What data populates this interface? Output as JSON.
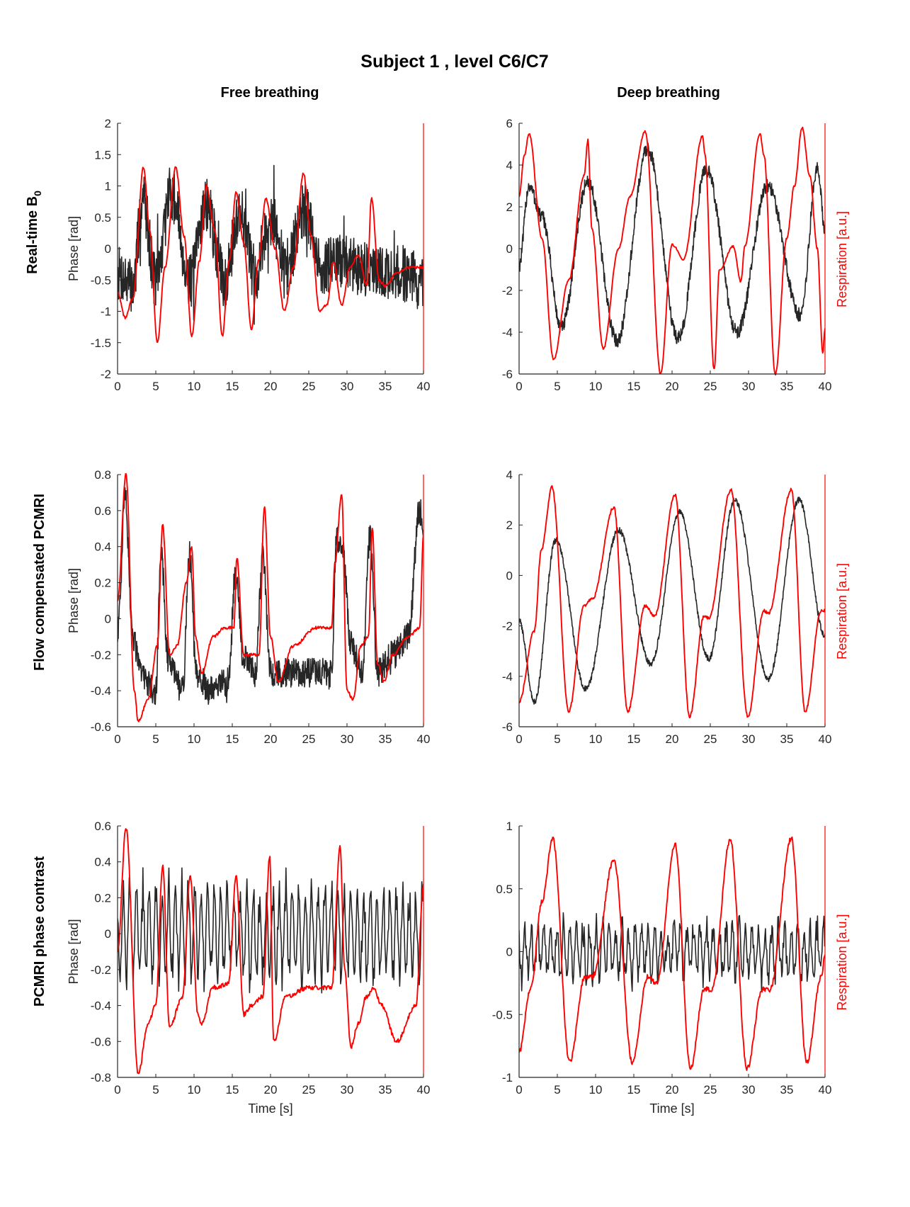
{
  "figure": {
    "title": "Subject 1 , level C6/C7",
    "columns": [
      "Free breathing",
      "Deep breathing"
    ],
    "rows": [
      {
        "label": "Real-time B",
        "subscript": "0"
      },
      {
        "label": "Flow compensated PCMRI",
        "subscript": ""
      },
      {
        "label": "PCMRI phase contrast",
        "subscript": ""
      }
    ],
    "colors": {
      "phase": "#262626",
      "respiration": "#ff0000",
      "axis": "#262626"
    }
  },
  "chart_data": [
    {
      "type": "line",
      "id": "b0_free",
      "row": 0,
      "col": 0,
      "xlim": [
        0,
        40
      ],
      "ylim": [
        -2,
        2
      ],
      "xticks": [
        0,
        5,
        10,
        15,
        20,
        25,
        30,
        35,
        40
      ],
      "yticks": [
        -2,
        -1.5,
        -1,
        -0.5,
        0,
        0.5,
        1,
        1.5,
        2
      ],
      "xlabel": "",
      "ylabel": "Phase [rad]",
      "y2label": "",
      "series": [
        {
          "name": "Phase",
          "color": "#262626",
          "noise": 0.45,
          "spike": 0.6,
          "x": [
            0,
            2,
            3.3,
            5,
            7,
            9.5,
            11.5,
            14,
            16,
            18,
            20,
            22,
            24.5,
            26.5,
            29,
            32,
            35,
            38,
            40
          ],
          "y": [
            -0.4,
            -0.6,
            0.8,
            -0.5,
            0.9,
            -0.5,
            0.7,
            -0.5,
            0.6,
            -0.4,
            0.5,
            -0.3,
            0.6,
            -0.3,
            -0.2,
            -0.3,
            -0.4,
            -0.4,
            -0.6
          ]
        },
        {
          "name": "Respiration",
          "color": "#ff0000",
          "noise": 0.02,
          "x": [
            0,
            1,
            2,
            3.4,
            4.2,
            5.2,
            6.2,
            7.6,
            8.7,
            9.7,
            10.7,
            11.6,
            12.7,
            13.7,
            14.6,
            15.5,
            16.5,
            17.5,
            18.4,
            19.4,
            20.6,
            21.8,
            23,
            24.3,
            25.3,
            26.4,
            27.4,
            28.2,
            29.3,
            30.4,
            31.5,
            32.6,
            33.2,
            34.2,
            35,
            36.5,
            38,
            40
          ],
          "y": [
            -0.7,
            -1.1,
            -0.8,
            1.3,
            0.3,
            -1.5,
            -0.3,
            1.3,
            0.2,
            -1.4,
            -0.2,
            1.0,
            0.3,
            -1.4,
            -0.2,
            0.9,
            0.1,
            -1.3,
            -0.2,
            0.8,
            0.0,
            -1.0,
            -0.3,
            1.2,
            0.2,
            -1.0,
            -0.9,
            -0.2,
            -0.9,
            -0.3,
            -0.1,
            -0.6,
            0.8,
            -0.5,
            -0.6,
            -0.4,
            -0.3,
            -0.3
          ]
        }
      ]
    },
    {
      "type": "line",
      "id": "b0_deep",
      "row": 0,
      "col": 1,
      "xlim": [
        0,
        40
      ],
      "ylim": [
        -6,
        6
      ],
      "xticks": [
        0,
        5,
        10,
        15,
        20,
        25,
        30,
        35,
        40
      ],
      "yticks": [
        -6,
        -4,
        -2,
        0,
        2,
        4,
        6
      ],
      "xlabel": "",
      "ylabel": "",
      "y2label": "Respiration [a.u.]",
      "series": [
        {
          "name": "Phase",
          "color": "#262626",
          "noise": 0.35,
          "spike": 0,
          "x": [
            0,
            1.3,
            3,
            5.5,
            9,
            12.8,
            16.8,
            20.8,
            24.5,
            28.5,
            32.5,
            36.8,
            39,
            40
          ],
          "y": [
            -0.8,
            3.0,
            1.5,
            -3.8,
            3.2,
            -4.4,
            4.8,
            -4.3,
            3.8,
            -4.0,
            3.0,
            -3.2,
            3.8,
            1.0
          ]
        },
        {
          "name": "Respiration",
          "color": "#ff0000",
          "noise": 0.05,
          "x": [
            0,
            0.7,
            1.3,
            3,
            4.5,
            6.5,
            8.5,
            9,
            9.5,
            11,
            13,
            14.5,
            16.5,
            18.5,
            20,
            21.5,
            24,
            24.3,
            25.5,
            26.2,
            28,
            29,
            29.5,
            31.5,
            32,
            33.5,
            35,
            36,
            37,
            38,
            39,
            39.7,
            40
          ],
          "y": [
            2.5,
            4.5,
            5.5,
            0.5,
            -5.3,
            -1.5,
            3.5,
            5.2,
            1.0,
            -4.8,
            0.0,
            2.5,
            5.6,
            -6.0,
            0.2,
            -0.5,
            5.4,
            4.5,
            -5.8,
            -1.0,
            0.1,
            -1.6,
            0.1,
            5.5,
            4.5,
            -6.0,
            0.5,
            3.0,
            5.8,
            3.5,
            0.0,
            -5.0,
            -3.8
          ]
        }
      ]
    },
    {
      "type": "line",
      "id": "fc_free",
      "row": 1,
      "col": 0,
      "xlim": [
        0,
        40
      ],
      "ylim": [
        -0.6,
        0.8
      ],
      "xticks": [
        0,
        5,
        10,
        15,
        20,
        25,
        30,
        35,
        40
      ],
      "yticks": [
        -0.6,
        -0.4,
        -0.2,
        0,
        0.2,
        0.4,
        0.6,
        0.8
      ],
      "xlabel": "",
      "ylabel": "Phase [rad]",
      "y2label": "",
      "series": [
        {
          "name": "Phase",
          "color": "#262626",
          "noise": 0.08,
          "spike": 0.05,
          "x": [
            0,
            1,
            2,
            3,
            5,
            5.7,
            6.5,
            8.5,
            9.4,
            10.3,
            12,
            14.5,
            15.4,
            16.4,
            18,
            19,
            20,
            22,
            25,
            28,
            28.6,
            29.5,
            30.5,
            32,
            33,
            34,
            36,
            38,
            39.5,
            40
          ],
          "y": [
            -0.1,
            0.65,
            -0.1,
            -0.3,
            -0.4,
            0.4,
            -0.2,
            -0.4,
            0.35,
            -0.3,
            -0.4,
            -0.35,
            0.25,
            -0.2,
            -0.3,
            0.35,
            -0.3,
            -0.3,
            -0.3,
            -0.3,
            0.45,
            0.35,
            -0.15,
            -0.3,
            0.45,
            -0.3,
            -0.2,
            -0.1,
            0.6,
            0.5
          ]
        },
        {
          "name": "Respiration",
          "color": "#ff0000",
          "noise": 0.008,
          "x": [
            0,
            1.1,
            2.2,
            2.7,
            4,
            5.2,
            5.9,
            6.8,
            7.8,
            9,
            9.7,
            10.2,
            11,
            12.5,
            14,
            15.2,
            15.6,
            16.5,
            18.5,
            19.2,
            20,
            21,
            23,
            26,
            28,
            28.4,
            29.3,
            30,
            30.8,
            31.8,
            32.8,
            33.3,
            34,
            34.8,
            36,
            38,
            39.5,
            40
          ],
          "y": [
            0.1,
            0.8,
            -0.4,
            -0.57,
            -0.45,
            -0.15,
            0.52,
            -0.2,
            -0.15,
            0.2,
            0.4,
            -0.1,
            -0.3,
            -0.1,
            -0.05,
            -0.05,
            0.34,
            -0.2,
            -0.2,
            0.62,
            -0.1,
            -0.35,
            -0.15,
            -0.05,
            -0.05,
            0.3,
            0.69,
            -0.4,
            -0.45,
            -0.15,
            -0.1,
            0.5,
            -0.25,
            -0.35,
            -0.2,
            -0.1,
            -0.05,
            0.47
          ]
        }
      ]
    },
    {
      "type": "line",
      "id": "fc_deep",
      "row": 1,
      "col": 1,
      "xlim": [
        0,
        40
      ],
      "ylim": [
        -6,
        4
      ],
      "xticks": [
        0,
        5,
        10,
        15,
        20,
        25,
        30,
        35,
        40
      ],
      "yticks": [
        -6,
        -4,
        -2,
        0,
        2,
        4
      ],
      "xlabel": "",
      "ylabel": "",
      "y2label": "Respiration [a.u.]",
      "series": [
        {
          "name": "Phase",
          "color": "#262626",
          "noise": 0.12,
          "spike": 0,
          "x": [
            0,
            2,
            4.8,
            8.7,
            13,
            17.2,
            21,
            24.8,
            28.2,
            32.6,
            36.6,
            40
          ],
          "y": [
            -1.8,
            -5.0,
            1.4,
            -4.5,
            1.8,
            -3.5,
            2.5,
            -3.3,
            3.0,
            -4.1,
            3.0,
            -2.4
          ]
        },
        {
          "name": "Respiration",
          "color": "#ff0000",
          "noise": 0.06,
          "x": [
            0,
            2,
            2.9,
            4.3,
            6.5,
            8.5,
            9.6,
            12.4,
            14.2,
            16.5,
            17.7,
            20.4,
            22.3,
            24.2,
            24.8,
            27.7,
            29.9,
            32,
            32.6,
            35.6,
            37.4,
            39.5,
            40
          ],
          "y": [
            -5.0,
            -2.2,
            1.0,
            3.5,
            -5.4,
            -1.2,
            -0.9,
            2.7,
            -5.4,
            -1.2,
            -1.6,
            3.2,
            -5.6,
            -1.6,
            -1.7,
            3.4,
            -5.6,
            -1.4,
            -1.5,
            3.4,
            -5.4,
            -1.4,
            -1.4
          ]
        }
      ]
    },
    {
      "type": "line",
      "id": "pc_free",
      "row": 2,
      "col": 0,
      "xlim": [
        0,
        40
      ],
      "ylim": [
        -0.8,
        0.6
      ],
      "xticks": [
        0,
        5,
        10,
        15,
        20,
        25,
        30,
        35,
        40
      ],
      "yticks": [
        -0.8,
        -0.6,
        -0.4,
        -0.2,
        0,
        0.2,
        0.4,
        0.6
      ],
      "xlabel": "Time [s]",
      "ylabel": "Phase [rad]",
      "y2label": "",
      "series": [
        {
          "name": "Phase",
          "color": "#262626",
          "osc": true,
          "amp": 0.27,
          "period": 0.85,
          "noise": 0.08,
          "x": [
            0,
            40
          ],
          "y": [
            0.0,
            0.0
          ]
        },
        {
          "name": "Respiration",
          "color": "#ff0000",
          "noise": 0.012,
          "x": [
            0,
            1.1,
            2.7,
            4,
            5,
            5.9,
            6.8,
            8.5,
            9.5,
            10.5,
            11,
            12.5,
            14.5,
            15.5,
            16.5,
            17.5,
            19,
            19.9,
            20.4,
            22,
            25,
            28,
            29.1,
            29.7,
            30.5,
            31.5,
            32.5,
            33.5,
            34.5,
            36.5,
            39,
            40
          ],
          "y": [
            -0.1,
            0.59,
            -0.78,
            -0.5,
            -0.4,
            0.38,
            -0.52,
            -0.35,
            0.33,
            -0.45,
            -0.5,
            -0.3,
            -0.28,
            0.32,
            -0.45,
            -0.4,
            -0.35,
            0.43,
            -0.6,
            -0.35,
            -0.3,
            -0.3,
            0.48,
            -0.2,
            -0.63,
            -0.5,
            -0.35,
            -0.3,
            -0.4,
            -0.6,
            -0.4,
            0.27
          ]
        }
      ]
    },
    {
      "type": "line",
      "id": "pc_deep",
      "row": 2,
      "col": 1,
      "xlim": [
        0,
        40
      ],
      "ylim": [
        -1,
        1
      ],
      "xticks": [
        0,
        5,
        10,
        15,
        20,
        25,
        30,
        35,
        40
      ],
      "yticks": [
        -1,
        -0.5,
        0,
        0.5,
        1
      ],
      "xlabel": "Time [s]",
      "ylabel": "",
      "y2label": "Respiration [a.u.]",
      "series": [
        {
          "name": "Phase",
          "color": "#262626",
          "osc": true,
          "amp": 0.22,
          "period": 0.85,
          "noise": 0.1,
          "x": [
            0,
            40
          ],
          "y": [
            0.0,
            0.0
          ]
        },
        {
          "name": "Respiration",
          "color": "#ff0000",
          "noise": 0.02,
          "x": [
            0,
            1.5,
            3,
            4.4,
            6.6,
            8.6,
            9.6,
            12.4,
            14.8,
            16.8,
            18,
            20.4,
            22.4,
            24.2,
            25.2,
            27.6,
            29.8,
            31.8,
            32.8,
            35.6,
            37.6,
            39.5,
            40
          ],
          "y": [
            -0.8,
            -0.3,
            0.4,
            0.9,
            -0.88,
            -0.2,
            -0.2,
            0.73,
            -0.88,
            -0.2,
            -0.25,
            0.85,
            -0.93,
            -0.3,
            -0.3,
            0.89,
            -0.93,
            -0.3,
            -0.3,
            0.9,
            -0.88,
            -0.2,
            -0.03
          ]
        }
      ]
    }
  ]
}
